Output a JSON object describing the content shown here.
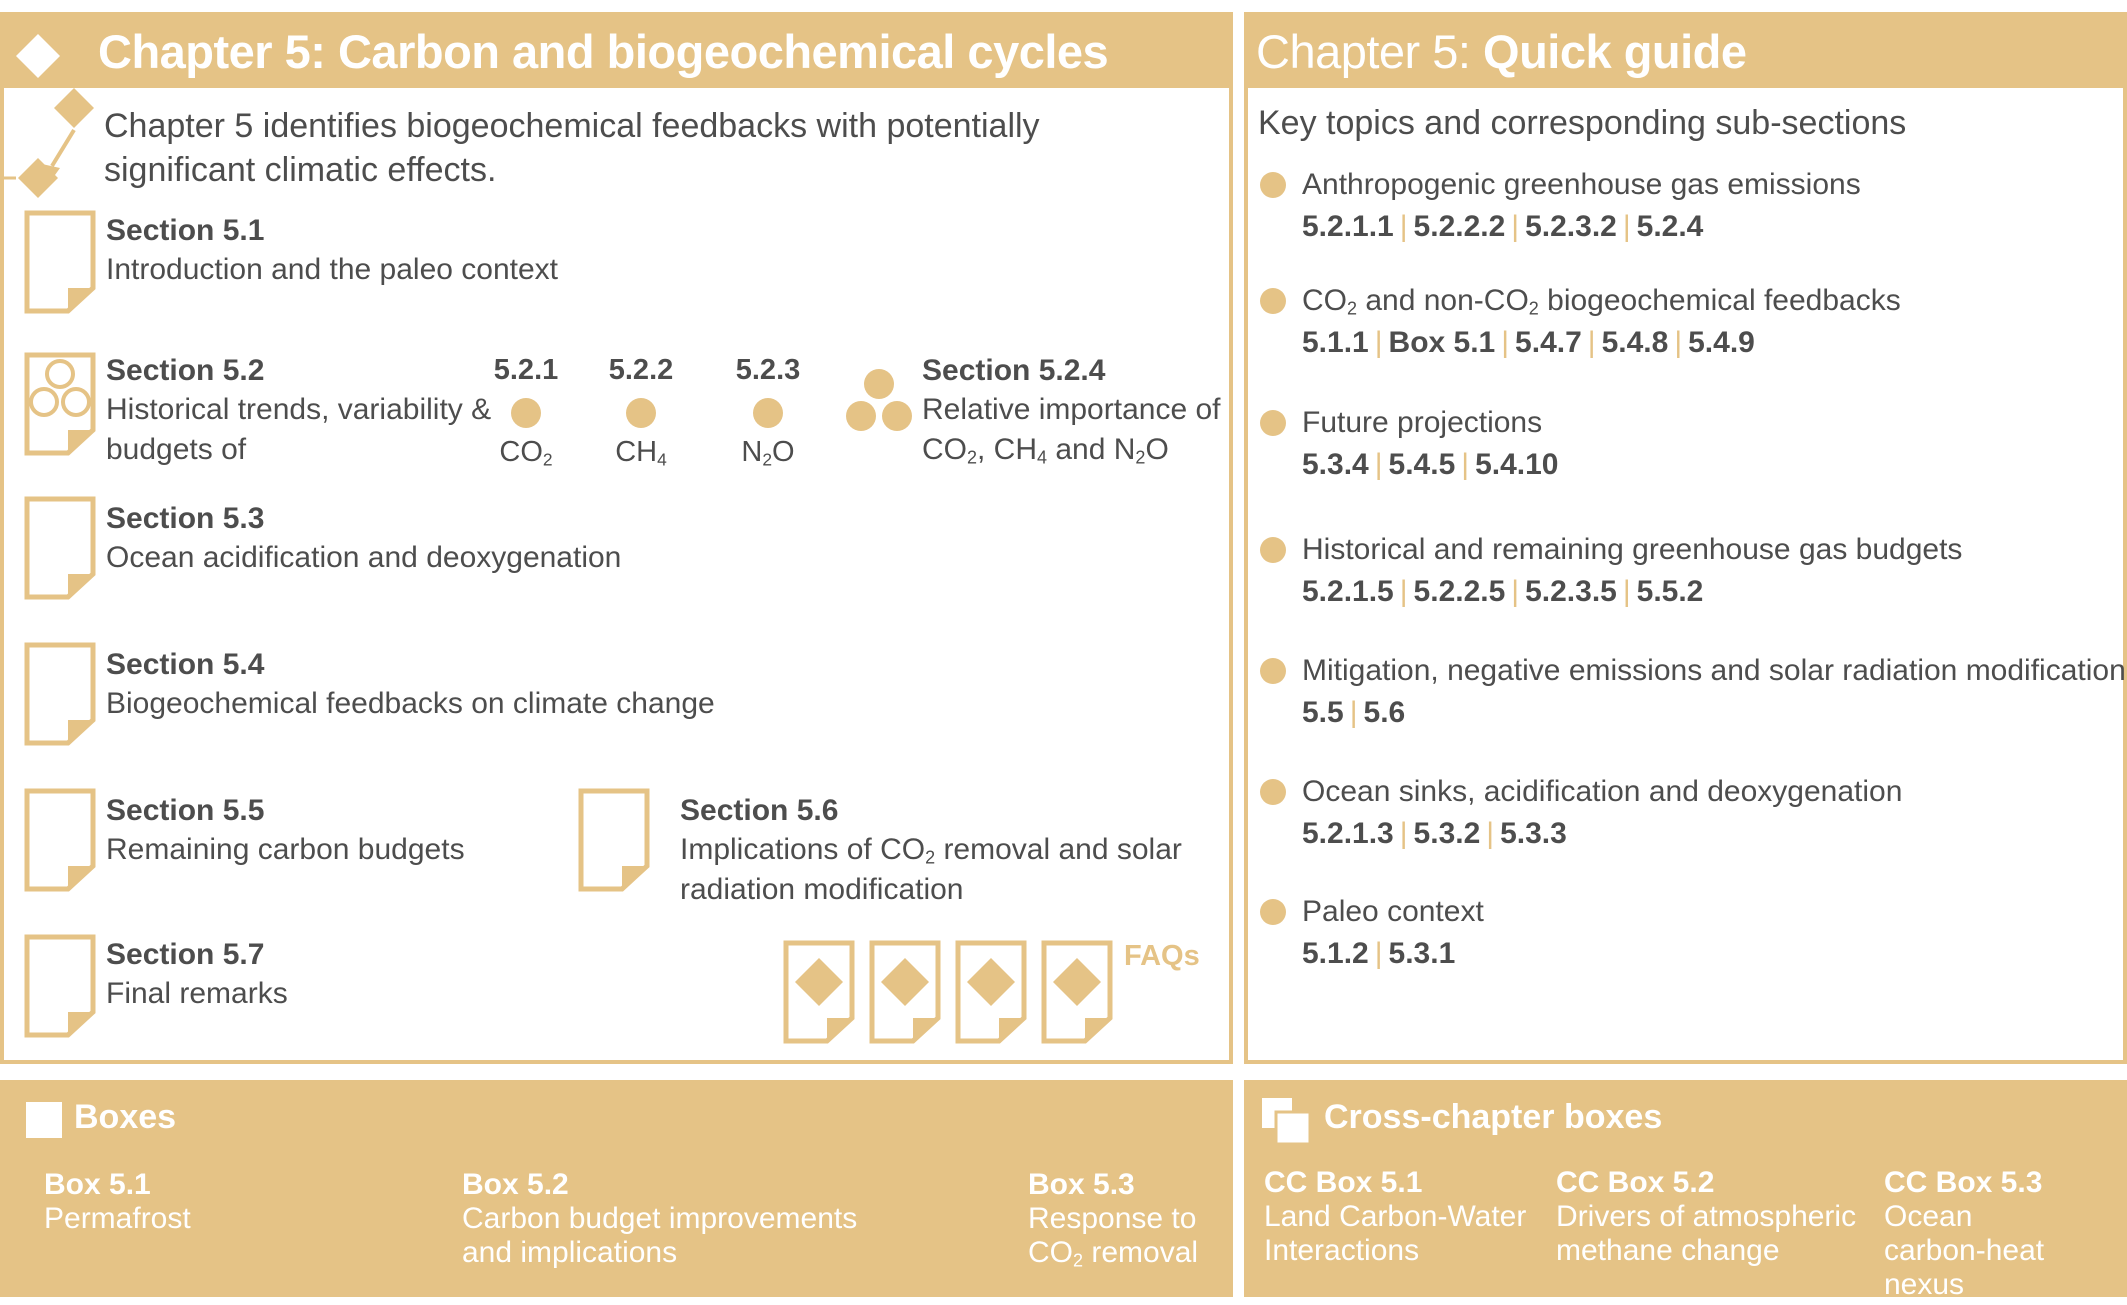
{
  "left": {
    "header": "Chapter 5: Carbon and biogeochemical cycles",
    "intro": "Chapter 5 identifies biogeochemical feedbacks with potentially significant climatic effects.",
    "sections": {
      "s51": {
        "title": "Section 5.1",
        "desc": "Introduction and the paleo context"
      },
      "s52": {
        "title": "Section 5.2",
        "desc1": "Historical trends, variability &",
        "desc2": "budgets of"
      },
      "s53": {
        "title": "Section 5.3",
        "desc": "Ocean acidification and deoxygenation"
      },
      "s54": {
        "title": "Section 5.4",
        "desc": "Biogeochemical feedbacks on climate change"
      },
      "s55": {
        "title": "Section 5.5",
        "desc": "Remaining carbon budgets"
      },
      "s56": {
        "title": "Section 5.6",
        "desc1a": "Implications of CO",
        "desc1sub": "2",
        "desc1b": " removal and solar",
        "desc2": "radiation modification"
      },
      "s57": {
        "title": "Section 5.7",
        "desc": "Final remarks"
      }
    },
    "gases": [
      {
        "code": "5.2.1",
        "name": "CO",
        "sub": "2"
      },
      {
        "code": "5.2.2",
        "name": "CH",
        "sub": "4"
      },
      {
        "code": "5.2.3",
        "name": "N",
        "sub": "2",
        "tail": "O"
      }
    ],
    "s524": {
      "title": "Section 5.2.4",
      "line1": "Relative importance of",
      "co": "CO",
      "co_sub": "2",
      "sep1": ", CH",
      "ch_sub": "4",
      "sep2": " and N",
      "n_sub": "2",
      "tail": "O"
    },
    "faq_label": "FAQs"
  },
  "right": {
    "header_light": "Chapter 5: ",
    "header_bold": "Quick guide",
    "subtitle": "Key topics and corresponding sub-sections",
    "topics": [
      {
        "title": "Anthropogenic greenhouse gas emissions",
        "refs": [
          "5.2.1.1",
          "5.2.2.2",
          "5.2.3.2",
          "5.2.4"
        ]
      },
      {
        "title_a": "CO",
        "title_sub1": "2",
        "title_b": " and non-CO",
        "title_sub2": "2",
        "title_c": " biogeochemical feedbacks",
        "refs": [
          "5.1.1",
          "Box 5.1",
          "5.4.7",
          "5.4.8",
          "5.4.9"
        ]
      },
      {
        "title": "Future projections",
        "refs": [
          "5.3.4",
          "5.4.5",
          "5.4.10"
        ]
      },
      {
        "title": "Historical and remaining greenhouse gas budgets",
        "refs": [
          "5.2.1.5",
          "5.2.2.5",
          "5.2.3.5",
          "5.5.2"
        ]
      },
      {
        "title": "Mitigation, negative emissions and solar radiation modification",
        "refs": [
          "5.5",
          "5.6"
        ]
      },
      {
        "title": "Ocean sinks, acidification and deoxygenation",
        "refs": [
          "5.2.1.3",
          "5.3.2",
          "5.3.3"
        ]
      },
      {
        "title": "Paleo context",
        "refs": [
          "5.1.2",
          "5.3.1"
        ]
      }
    ]
  },
  "boxes": {
    "title": "Boxes",
    "items": [
      {
        "title": "Box 5.1",
        "l1": "Permafrost",
        "l2": ""
      },
      {
        "title": "Box 5.2",
        "l1": "Carbon budget improvements",
        "l2": "and implications"
      },
      {
        "title": "Box 5.3",
        "l1": "Response to",
        "l2a": "CO",
        "l2sub": "2",
        "l2b": " removal"
      }
    ]
  },
  "ccboxes": {
    "title": "Cross-chapter boxes",
    "items": [
      {
        "title": "CC Box 5.1",
        "l1": "Land Carbon-Water",
        "l2": "Interactions"
      },
      {
        "title": "CC Box 5.2",
        "l1": "Drivers of atmospheric",
        "l2": "methane change"
      },
      {
        "title": "CC Box 5.3",
        "l1": "Ocean",
        "l2": "carbon-heat nexus"
      }
    ]
  },
  "colors": {
    "accent": "#e5c386",
    "text": "#4d4d4d"
  }
}
